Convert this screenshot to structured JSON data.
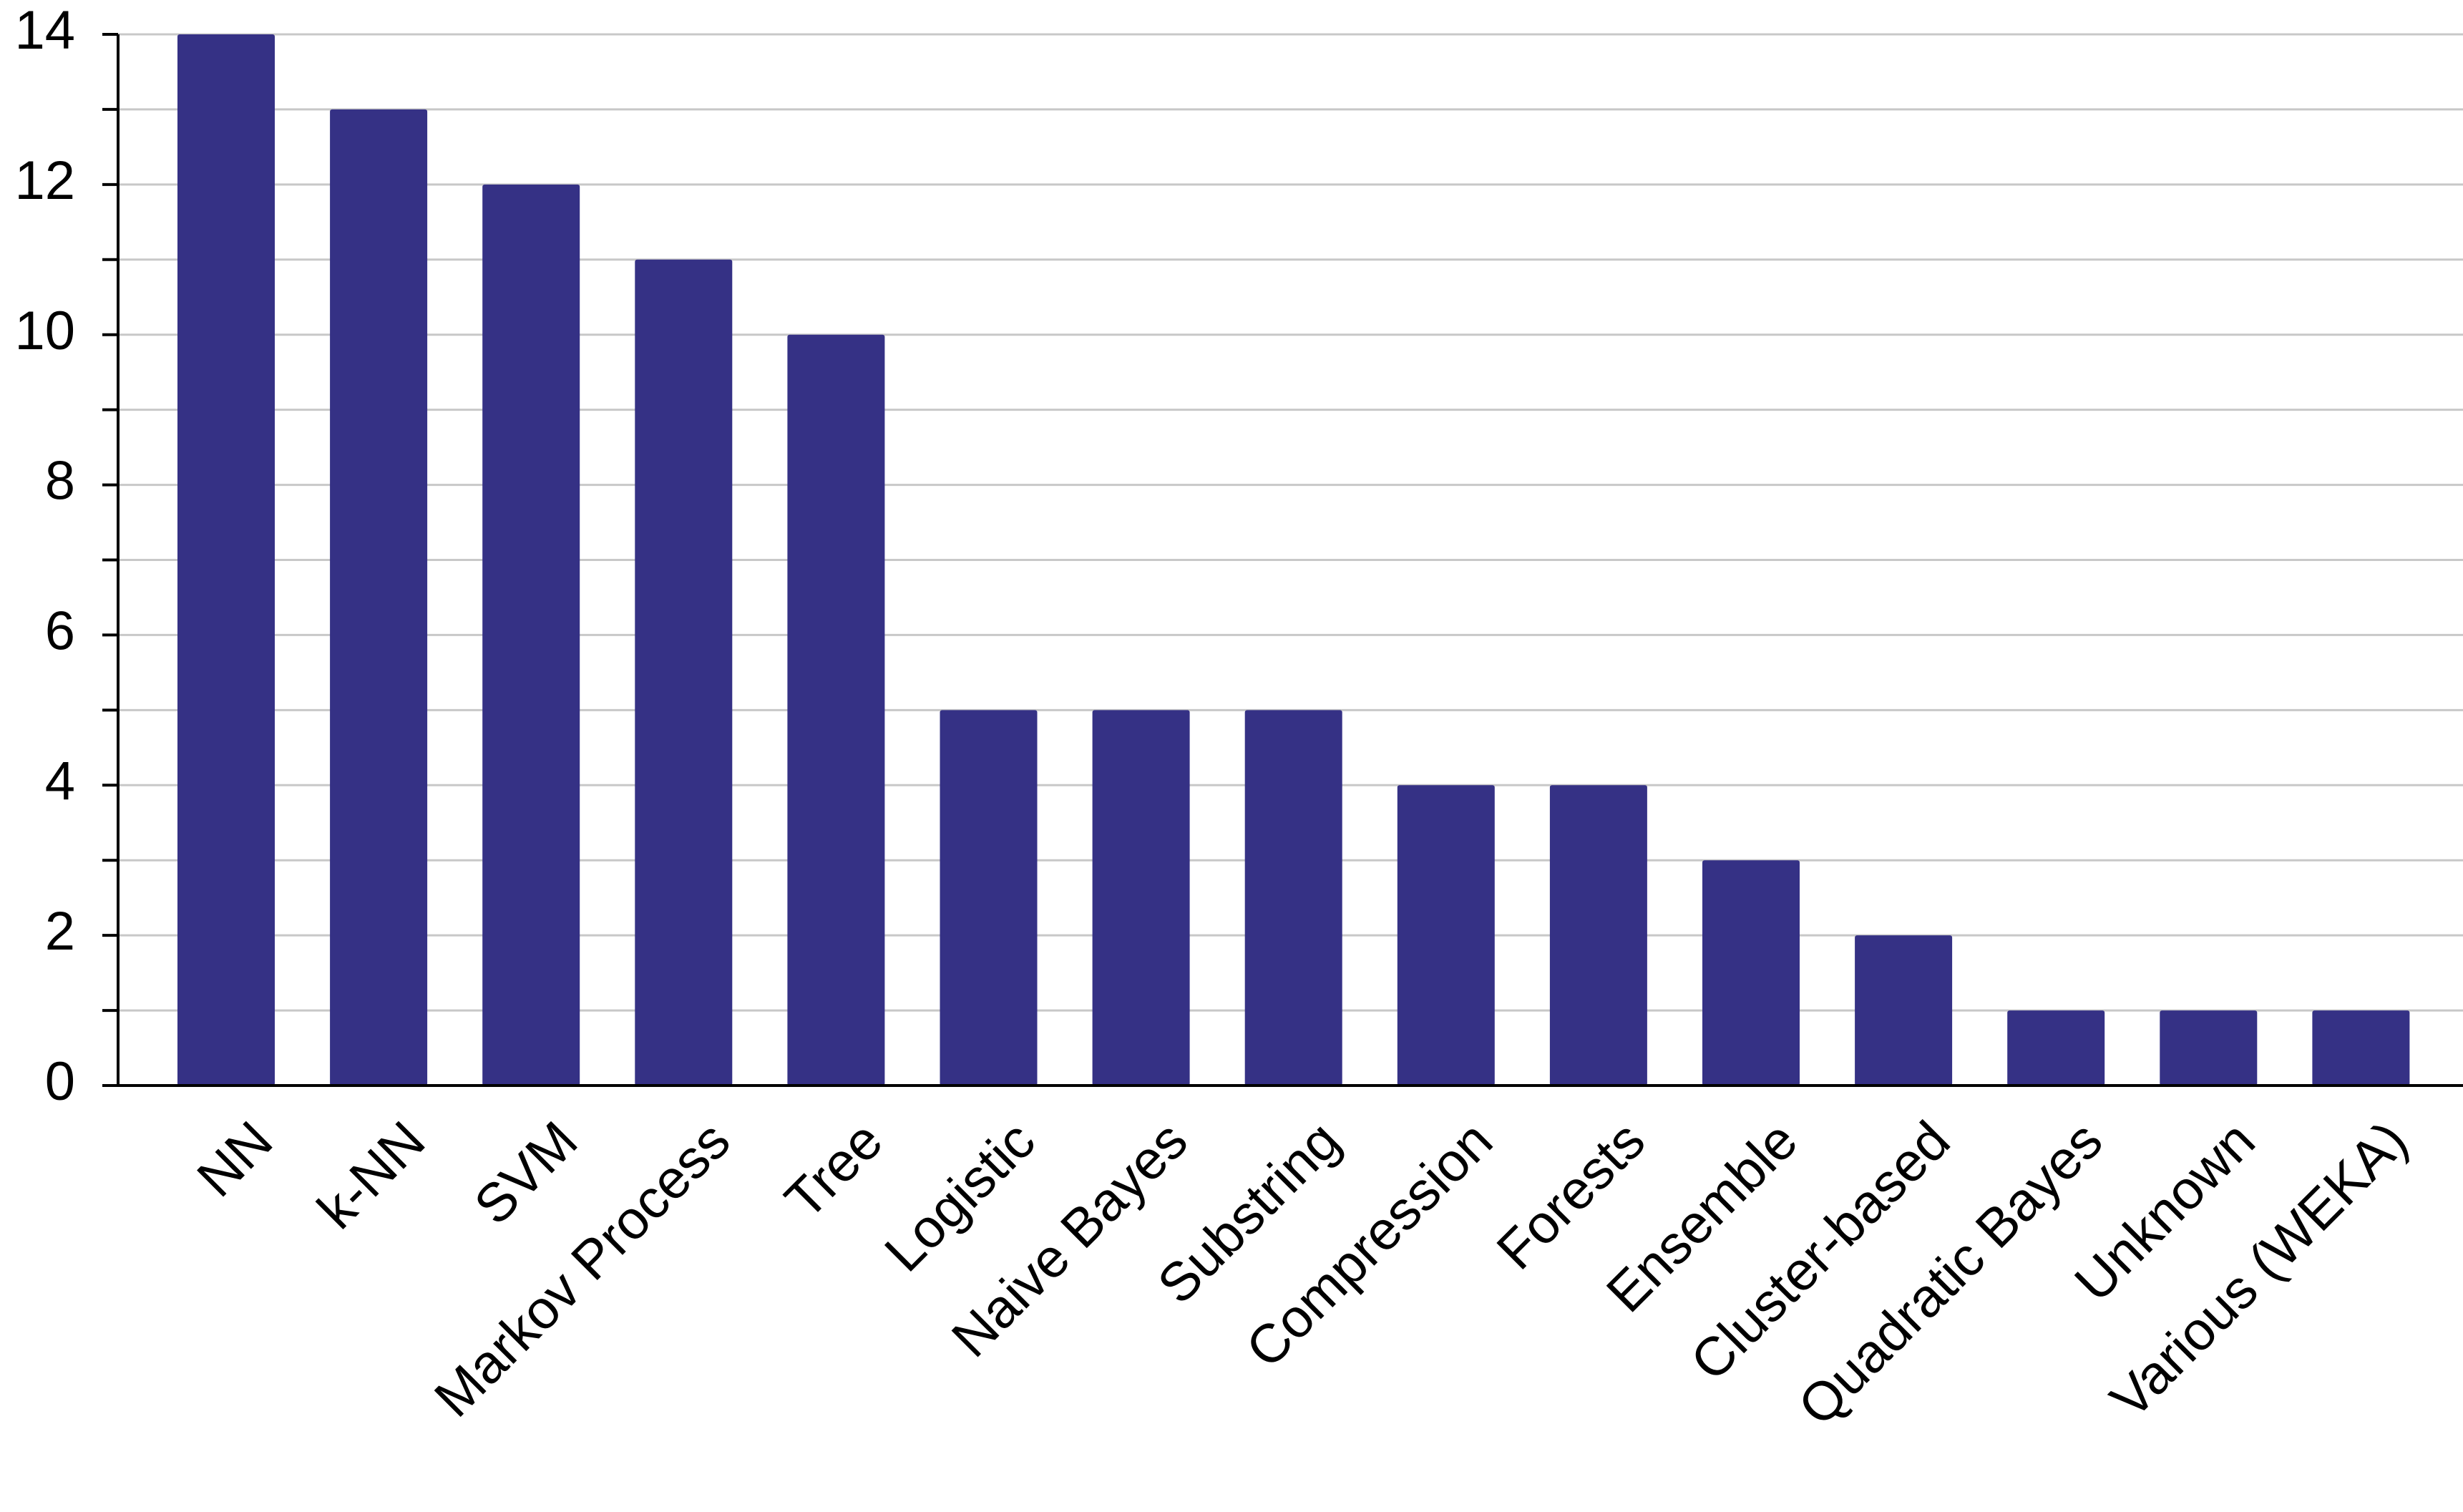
{
  "chart_data": {
    "type": "bar",
    "categories": [
      "NN",
      "k-NN",
      "SVM",
      "Markov Process",
      "Tree",
      "Logistic",
      "Naive Bayes",
      "Substring",
      "Compression",
      "Forests",
      "Ensemble",
      "Cluster-based",
      "Quadratic Bayes",
      "Unknown",
      "Various (WEKA)"
    ],
    "values": [
      14,
      13,
      12,
      11,
      10,
      5,
      5,
      5,
      4,
      4,
      3,
      2,
      1,
      1,
      1
    ],
    "color": "#353185",
    "ylim": [
      0,
      14
    ],
    "yticks": [
      0,
      2,
      4,
      6,
      8,
      10,
      12,
      14
    ],
    "minor_yticks": [
      1,
      3,
      5,
      7,
      9,
      11,
      13
    ],
    "grid": true
  }
}
